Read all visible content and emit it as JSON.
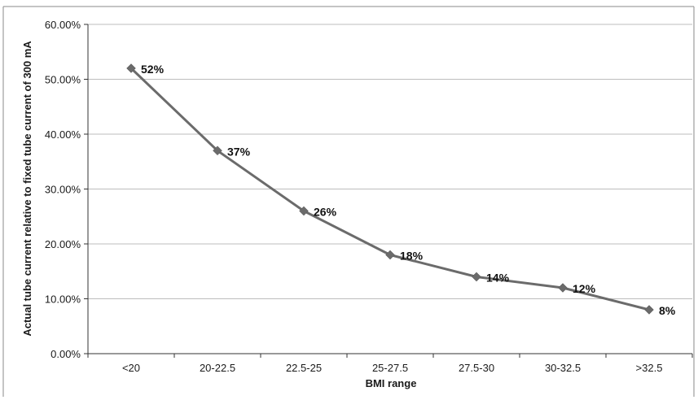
{
  "chart_data": {
    "type": "line",
    "categories": [
      "<20",
      "20-22.5",
      "22.5-25",
      "25-27.5",
      "27.5-30",
      "30-32.5",
      ">32.5"
    ],
    "values": [
      0.52,
      0.37,
      0.26,
      0.18,
      0.14,
      0.12,
      0.08
    ],
    "data_labels": [
      "52%",
      "37%",
      "26%",
      "18%",
      "14%",
      "12%",
      "8%"
    ],
    "y_ticks": [
      "0.00%",
      "10.00%",
      "20.00%",
      "30.00%",
      "40.00%",
      "50.00%",
      "60.00%"
    ],
    "ylim": [
      0,
      0.6
    ],
    "xlabel": "BMI range",
    "ylabel": "Actual tube current relative to fixed tube current of 300 mA",
    "grid": true,
    "marker": "diamond",
    "line_color": "#6b6b6b",
    "grid_color": "#bdbdbd"
  }
}
